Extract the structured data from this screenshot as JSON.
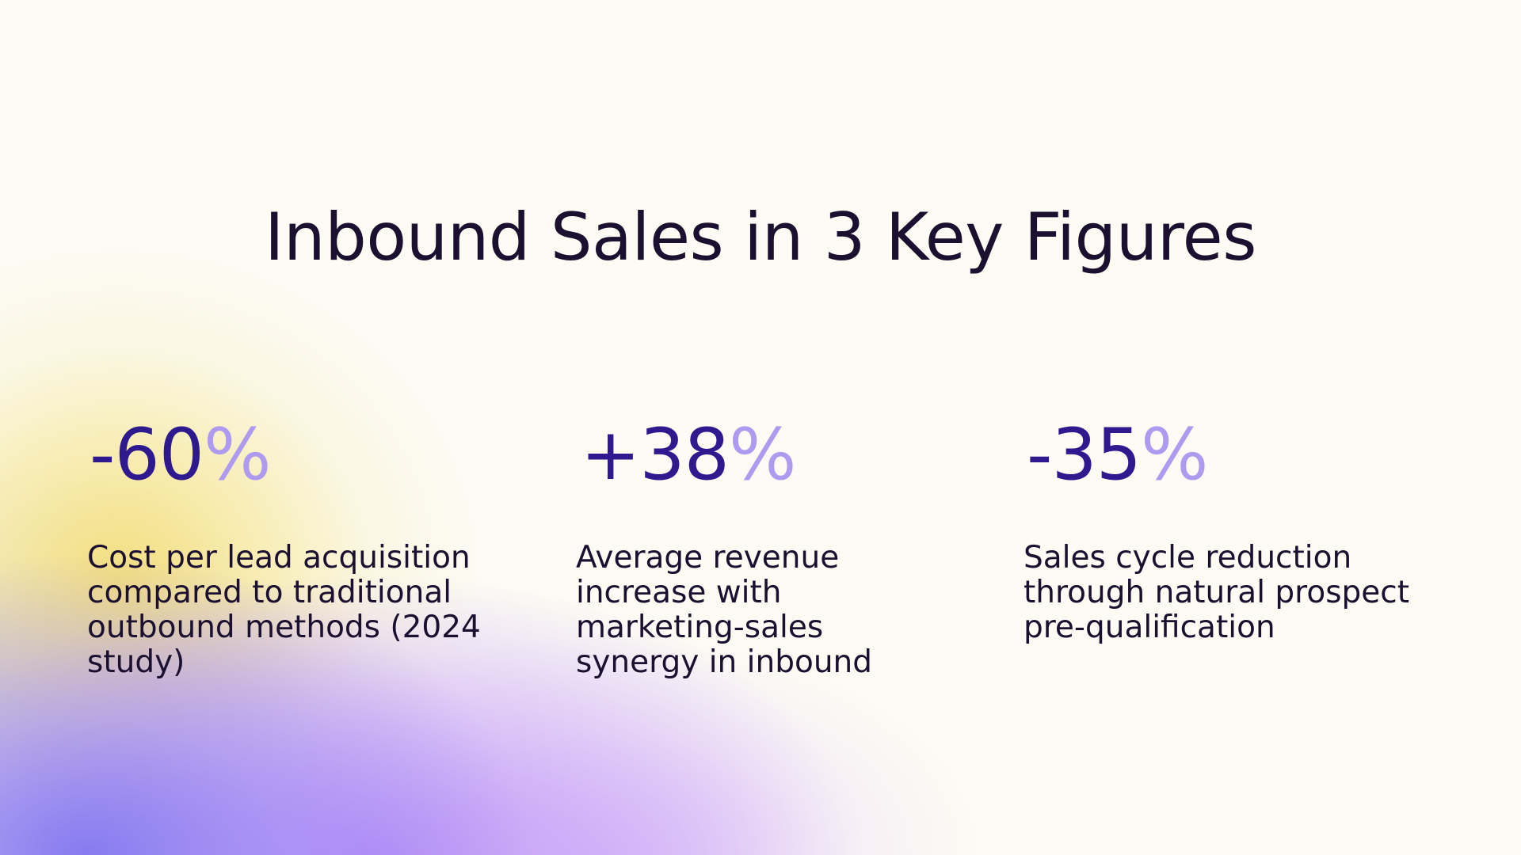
{
  "title": "Inbound Sales in 3 Key Figures",
  "figures": [
    {
      "value": "-60",
      "unit": "%",
      "description": "Cost per lead acquisition compared to traditional outbound methods (2024 study)"
    },
    {
      "value": "+38",
      "unit": "%",
      "description": "Average revenue increase with marketing-sales synergy in inbound"
    },
    {
      "value": "-35",
      "unit": "%",
      "description": "Sales cycle reduction through natural prospect pre-qualification"
    }
  ],
  "colors": {
    "background": "#fcfbf4",
    "title_text": "#1b1030",
    "figure_value": "#2e1a8e",
    "figure_unit": "#ae9bef",
    "glow_yellow": "#f4de78",
    "glow_violet": "#b88ef6",
    "glow_blue": "#8276f0"
  }
}
